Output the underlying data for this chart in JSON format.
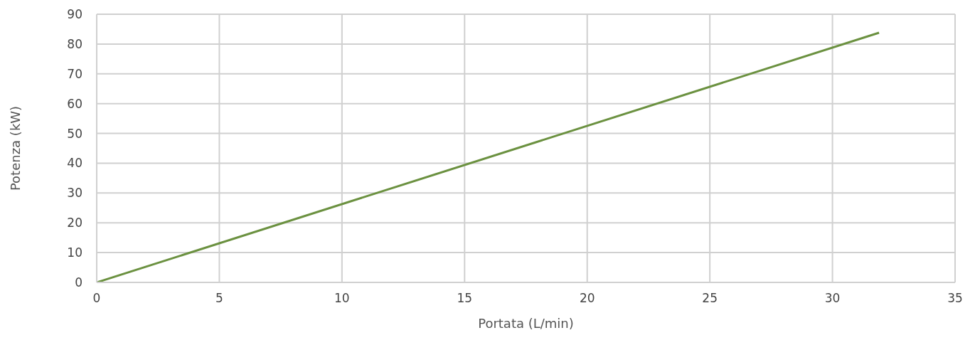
{
  "chart_data": {
    "type": "line",
    "xlabel": "Portata (L/min)",
    "ylabel": "Potenza (kW)",
    "x": [
      0,
      31.9
    ],
    "series": [
      {
        "color": "#6b9140",
        "values": [
          0,
          83.8
        ]
      }
    ],
    "xlim": [
      0,
      35
    ],
    "xticks": [
      0,
      5,
      10,
      15,
      20,
      25,
      30,
      35
    ],
    "ylim": [
      0,
      90
    ],
    "yticks": [
      0,
      10,
      20,
      30,
      40,
      50,
      60,
      70,
      80,
      90
    ],
    "grid": true,
    "legend": false,
    "marker": "none",
    "line_style": "solid"
  }
}
